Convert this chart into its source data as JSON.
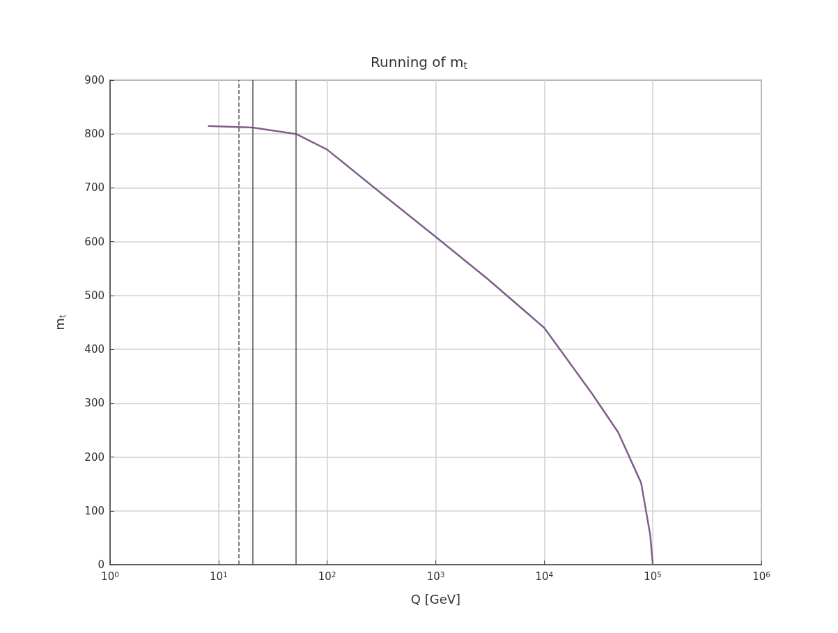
{
  "chart_data": {
    "type": "line",
    "title": "Running of m$_{t}$",
    "xlabel": "Q [GeV]",
    "ylabel": "m$_{t}$",
    "x": [
      8.1,
      20.7,
      51.7,
      100,
      328,
      1000,
      3000,
      10000,
      27700,
      47900,
      78000,
      94500,
      100000
    ],
    "series": [
      {
        "color": "#7f5f8a",
        "values": [
          815,
          812,
          800,
          771,
          687,
          609,
          531,
          440,
          317,
          246,
          152,
          56,
          0
        ]
      }
    ],
    "log": "x",
    "xlim": [
      1,
      1000000
    ],
    "xticks": [
      {
        "value": 1,
        "label": "10$^{0}$"
      },
      {
        "value": 10,
        "label": "10$^{1}$"
      },
      {
        "value": 100,
        "label": "10$^{2}$"
      },
      {
        "value": 1000,
        "label": "10$^{3}$"
      },
      {
        "value": 10000,
        "label": "10$^{4}$"
      },
      {
        "value": 100000,
        "label": "10$^{5}$"
      },
      {
        "value": 1000000,
        "label": "10$^{6}$"
      }
    ],
    "ylim": [
      0,
      900
    ],
    "yticks": [
      0,
      100,
      200,
      300,
      400,
      500,
      600,
      700,
      800,
      900
    ],
    "ref_lines": [
      {
        "axis": "x",
        "value": 15.4,
        "line_style": "dashed",
        "color": "#555555"
      },
      {
        "axis": "x",
        "value": 20.7,
        "line_style": "solid",
        "color": "#555555"
      },
      {
        "axis": "x",
        "value": 51.7,
        "line_style": "solid",
        "color": "#555555"
      }
    ],
    "grid": true,
    "marker": "none",
    "line_style": "solid"
  }
}
